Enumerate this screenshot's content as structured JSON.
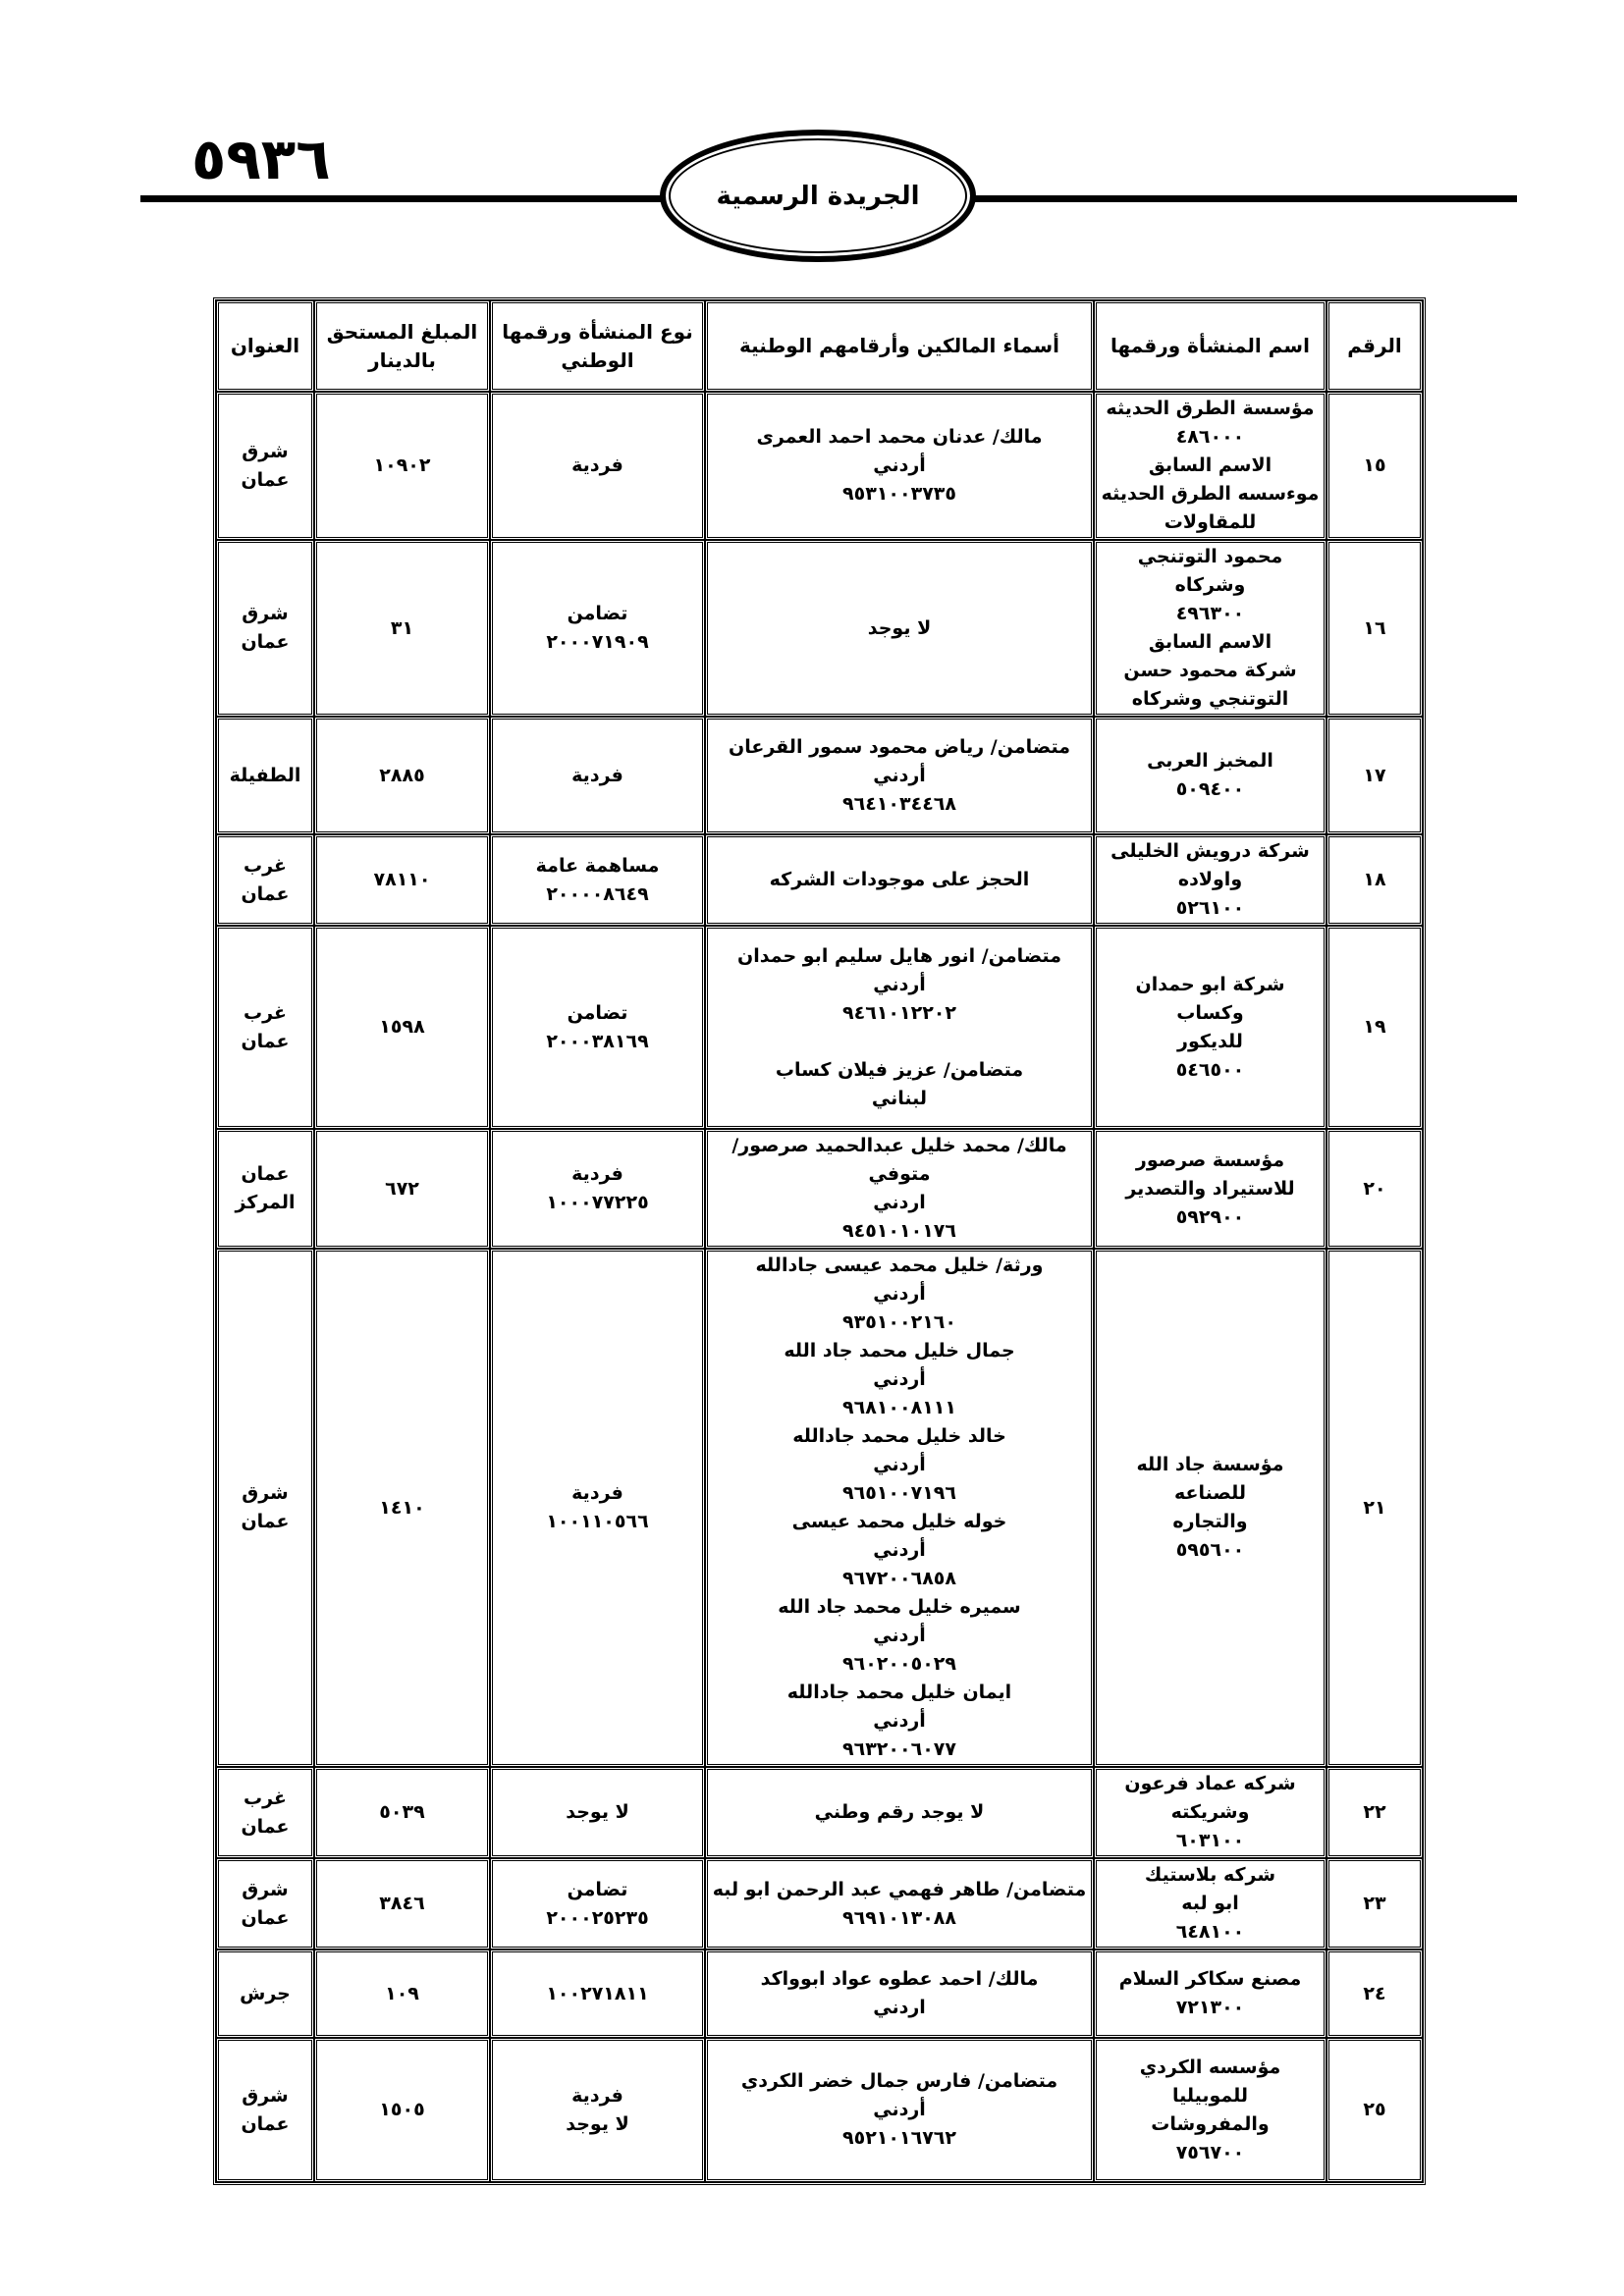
{
  "header": {
    "page_number": "٥٩٣٦",
    "publication": "الجريدة الرسمية"
  },
  "table": {
    "columns": [
      "الرقم",
      "اسم المنشأة ورقمها",
      "أسماء المالكين وأرقامهم الوطنية",
      "نوع المنشأة ورقمها\nالوطني",
      "المبلغ المستحق\nبالدينار",
      "العنوان"
    ],
    "rows": [
      {
        "num": "١٥",
        "name": "مؤسسة الطرق الحديثه\n٤٨٦٠٠٠\nالاسم السابق\nموءسسه الطرق الحديثه\nللمقاولات",
        "owners": "مالك/ عدنان محمد احمد العمرى\nأردني\n٩٥٣١٠٠٣٧٣٥",
        "type": "فردية",
        "amount": "١٠٩٠٢",
        "address": "شرق\nعمان"
      },
      {
        "num": "١٦",
        "name": "محمود التوتنجي وشركاه\n٤٩٦٣٠٠\nالاسم السابق\nشركة محمود حسن\nالتوتنجي وشركاه",
        "owners": "لا يوجد",
        "type": "تضامن\n٢٠٠٠٧١٩٠٩",
        "amount": "٣١",
        "address": "شرق\nعمان"
      },
      {
        "num": "١٧",
        "name": "المخبز العربى\n٥٠٩٤٠٠",
        "owners": "متضامن/ رياض محمود سمور القرعان\nأردني\n٩٦٤١٠٣٤٤٦٨",
        "type": "فردية",
        "amount": "٢٨٨٥",
        "address": "الطفيلة"
      },
      {
        "num": "١٨",
        "name": "شركة درويش  الخليلى\nواولاده\n٥٢٦١٠٠",
        "owners": "الحجز على موجودات الشركه",
        "type": "مساهمة عامة\n٢٠٠٠٠٨٦٤٩",
        "amount": "٧٨١١٠",
        "address": "غرب\nعمان"
      },
      {
        "num": "١٩",
        "name": "شركة ابو حمدان وكساب\nللديكور\n٥٤٦٥٠٠",
        "owners": "متضامن/ انور هايل سليم ابو حمدان\nأردني\n٩٤٦١٠١٢٢٠٢\n\nمتضامن/ عزيز فيلان كساب\nلبناني",
        "type": "تضامن\n٢٠٠٠٣٨١٦٩",
        "amount": "١٥٩٨",
        "address": "غرب\nعمان"
      },
      {
        "num": "٢٠",
        "name": "مؤسسة صرصور\nللاستيراد والتصدير\n٥٩٢٩٠٠",
        "owners": "مالك/ محمد خليل عبدالحميد صرصور/متوفي\nاردني\n٩٤٥١٠١٠١٧٦",
        "type": "فردية\n١٠٠٠٧٧٢٢٥",
        "amount": "٦٧٢",
        "address": "عمان\nالمركز"
      },
      {
        "num": "٢١",
        "name": "مؤسسة جاد الله للصناعه\nوالتجاره\n٥٩٥٦٠٠",
        "owners": "ورثة/ خليل محمد عيسى جادالله\nأردني\n٩٣٥١٠٠٢١٦٠\nجمال خليل محمد جاد الله\nأردني\n٩٦٨١٠٠٨١١١\nخالد خليل محمد جادالله\nأردني\n٩٦٥١٠٠٧١٩٦\nخوله خليل محمد عيسى\nأردني\n٩٦٧٢٠٠٦٨٥٨\nسميره خليل محمد جاد الله\nأردني\n٩٦٠٢٠٠٥٠٢٩\nايمان خليل محمد جادالله\nأردني\n٩٦٣٢٠٠٦٠٧٧",
        "type": "فردية\n١٠٠١١٠٥٦٦",
        "amount": "١٤١٠",
        "address": "شرق\nعمان"
      },
      {
        "num": "٢٢",
        "name": "شركه عماد فرعون\nوشريكته\n٦٠٣١٠٠",
        "owners": "لا يوجد رقم وطني",
        "type": "لا يوجد",
        "amount": "٥٠٣٩",
        "address": "غرب\nعمان"
      },
      {
        "num": "٢٣",
        "name": "شركه بلاستيك\nابو لبه\n٦٤٨١٠٠",
        "owners": "متضامن/ طاهر فهمي عبد الرحمن ابو لبه\n٩٦٩١٠١٣٠٨٨",
        "type": "تضامن\n٢٠٠٠٢٥٢٣٥",
        "amount": "٣٨٤٦",
        "address": "شرق\nعمان"
      },
      {
        "num": "٢٤",
        "name": "مصنع سكاكر السلام\n٧٢١٣٠٠",
        "owners": "مالك/ احمد عطوه عواد ابوواكد\nاردني",
        "type": "١٠٠٢٧١٨١١",
        "amount": "١٠٩",
        "address": "جرش"
      },
      {
        "num": "٢٥",
        "name": "مؤسسه الكردي للموبيليا\nوالمفروشات\n٧٥٦٧٠٠",
        "owners": "متضامن/ فارس جمال خضر الكردي\nأردني\n٩٥٢١٠١٦٧٦٢",
        "type": "فردية\nلا يوجد",
        "amount": "١٥٠٥",
        "address": "شرق\nعمان"
      }
    ]
  }
}
